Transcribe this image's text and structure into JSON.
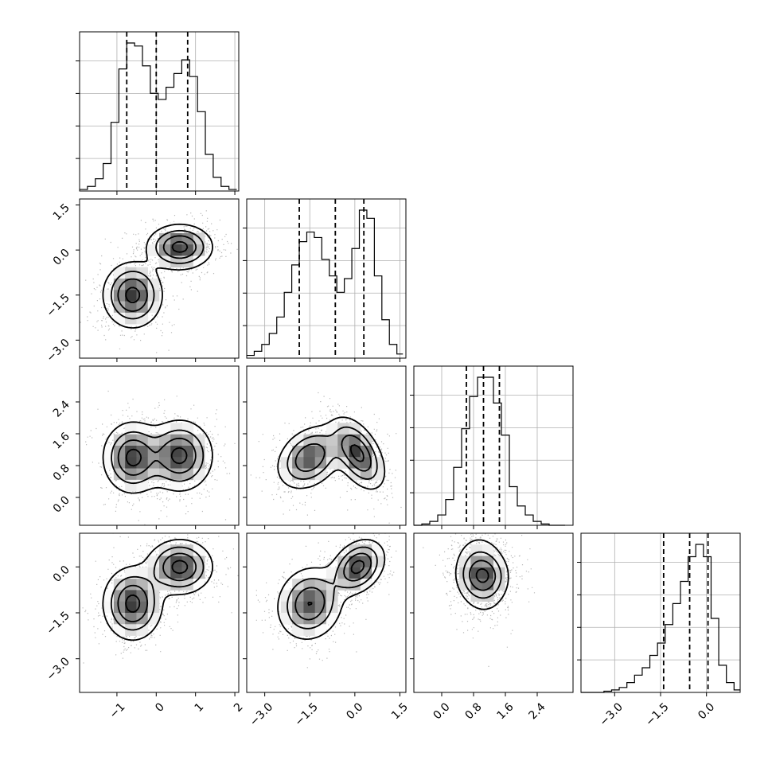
{
  "chart_data": {
    "type": "corner",
    "parameters": 4,
    "ranges": [
      [
        -1.95,
        2.1
      ],
      [
        -3.6,
        1.7
      ],
      [
        -0.7,
        3.3
      ],
      [
        -4.1,
        1.1
      ]
    ],
    "grid": true,
    "x_ticks": [
      {
        "values": [
          -1,
          0,
          1,
          2
        ],
        "labels": [
          "−1",
          "0",
          "1",
          "2"
        ]
      },
      {
        "values": [
          -3.0,
          -1.5,
          0.0,
          1.5
        ],
        "labels": [
          "−3.0",
          "−1.5",
          "0.0",
          "1.5"
        ]
      },
      {
        "values": [
          0.0,
          0.8,
          1.6,
          2.4
        ],
        "labels": [
          "0.0",
          "0.8",
          "1.6",
          "2.4"
        ]
      },
      {
        "values": [
          -3.0,
          -1.5,
          0.0
        ],
        "labels": [
          "−3.0",
          "−1.5",
          "0.0"
        ]
      }
    ],
    "y_ticks": [
      null,
      {
        "values": [
          1.5,
          0.0,
          -1.5,
          -3.0
        ],
        "labels": [
          "1.5",
          "0.0",
          "−1.5",
          "−3.0"
        ]
      },
      {
        "values": [
          2.4,
          1.6,
          0.8,
          0.0
        ],
        "labels": [
          "2.4",
          "1.6",
          "0.8",
          "0.0"
        ]
      },
      {
        "values": [
          0.0,
          -1.5,
          -3.0
        ],
        "labels": [
          "0.0",
          "−1.5",
          "−3.0"
        ]
      }
    ],
    "quantiles": [
      [
        -0.75,
        0.0,
        0.8
      ],
      [
        -1.85,
        -0.65,
        0.3
      ],
      [
        0.62,
        1.05,
        1.45
      ],
      [
        -1.4,
        -0.55,
        0.05
      ]
    ],
    "histograms": [
      {
        "edges": [
          -1.95,
          -1.75,
          -1.55,
          -1.35,
          -1.15,
          -0.95,
          -0.75,
          -0.55,
          -0.35,
          -0.15,
          0.05,
          0.25,
          0.45,
          0.65,
          0.85,
          1.05,
          1.25,
          1.45,
          1.65,
          1.85,
          2.05
        ],
        "counts": [
          1,
          3,
          8,
          18,
          45,
          80,
          97,
          95,
          82,
          64,
          60,
          68,
          77,
          86,
          75,
          52,
          24,
          9,
          3,
          1
        ]
      },
      {
        "edges": [
          -3.6,
          -3.35,
          -3.1,
          -2.85,
          -2.6,
          -2.35,
          -2.1,
          -1.85,
          -1.6,
          -1.35,
          -1.1,
          -0.85,
          -0.6,
          -0.35,
          -0.1,
          0.15,
          0.4,
          0.65,
          0.9,
          1.15,
          1.4,
          1.6
        ],
        "counts": [
          2,
          5,
          10,
          18,
          30,
          48,
          68,
          85,
          92,
          88,
          72,
          60,
          48,
          58,
          80,
          108,
          102,
          60,
          28,
          10,
          3
        ]
      },
      {
        "edges": [
          -0.7,
          -0.5,
          -0.3,
          -0.1,
          0.1,
          0.3,
          0.5,
          0.7,
          0.9,
          1.1,
          1.3,
          1.5,
          1.7,
          1.9,
          2.1,
          2.3,
          2.5,
          2.7,
          2.9,
          3.1
        ],
        "counts": [
          0,
          1,
          3,
          8,
          20,
          45,
          75,
          100,
          115,
          115,
          95,
          70,
          30,
          15,
          8,
          3,
          1,
          0,
          0
        ]
      },
      {
        "edges": [
          -4.1,
          -3.85,
          -3.6,
          -3.35,
          -3.1,
          -2.85,
          -2.6,
          -2.35,
          -2.1,
          -1.85,
          -1.6,
          -1.35,
          -1.1,
          -0.85,
          -0.6,
          -0.35,
          -0.1,
          0.15,
          0.4,
          0.65,
          0.9,
          1.1
        ],
        "counts": [
          0,
          0,
          0,
          1,
          2,
          4,
          8,
          14,
          20,
          30,
          40,
          55,
          72,
          90,
          110,
          120,
          110,
          60,
          22,
          8,
          2
        ]
      }
    ],
    "pairs": [
      {
        "row": 1,
        "col": 0,
        "components": [
          {
            "mx": -0.6,
            "my": -1.5,
            "sx": 0.38,
            "sy": 0.55,
            "rho": 0.0,
            "w": 1.0
          },
          {
            "mx": 0.6,
            "my": 0.1,
            "sx": 0.42,
            "sy": 0.38,
            "rho": 0.0,
            "w": 1.0
          }
        ]
      },
      {
        "row": 2,
        "col": 0,
        "components": [
          {
            "mx": -0.6,
            "my": 1.0,
            "sx": 0.38,
            "sy": 0.45,
            "rho": 0.0,
            "w": 1.0
          },
          {
            "mx": 0.6,
            "my": 1.05,
            "sx": 0.42,
            "sy": 0.45,
            "rho": 0.0,
            "w": 1.0
          }
        ]
      },
      {
        "row": 2,
        "col": 1,
        "components": [
          {
            "mx": -1.5,
            "my": 1.0,
            "sx": 0.55,
            "sy": 0.4,
            "rho": 0.3,
            "w": 0.95
          },
          {
            "mx": 0.1,
            "my": 1.1,
            "sx": 0.45,
            "sy": 0.45,
            "rho": -0.5,
            "w": 1.05
          }
        ]
      },
      {
        "row": 3,
        "col": 0,
        "components": [
          {
            "mx": -0.6,
            "my": -1.2,
            "sx": 0.38,
            "sy": 0.6,
            "rho": 0.0,
            "w": 1.0
          },
          {
            "mx": 0.6,
            "my": 0.0,
            "sx": 0.42,
            "sy": 0.45,
            "rho": 0.0,
            "w": 1.0
          }
        ]
      },
      {
        "row": 3,
        "col": 1,
        "components": [
          {
            "mx": -1.5,
            "my": -1.2,
            "sx": 0.55,
            "sy": 0.6,
            "rho": 0.1,
            "w": 0.95
          },
          {
            "mx": 0.1,
            "my": 0.0,
            "sx": 0.45,
            "sy": 0.45,
            "rho": 0.3,
            "w": 1.05
          }
        ]
      },
      {
        "row": 3,
        "col": 2,
        "components": [
          {
            "mx": 1.0,
            "my": -0.25,
            "sx": 0.35,
            "sy": 0.65,
            "rho": -0.1,
            "w": 1.0
          },
          {
            "mx": 1.05,
            "my": -0.3,
            "sx": 0.3,
            "sy": 0.35,
            "rho": 0.0,
            "w": 0.6
          }
        ]
      }
    ]
  }
}
